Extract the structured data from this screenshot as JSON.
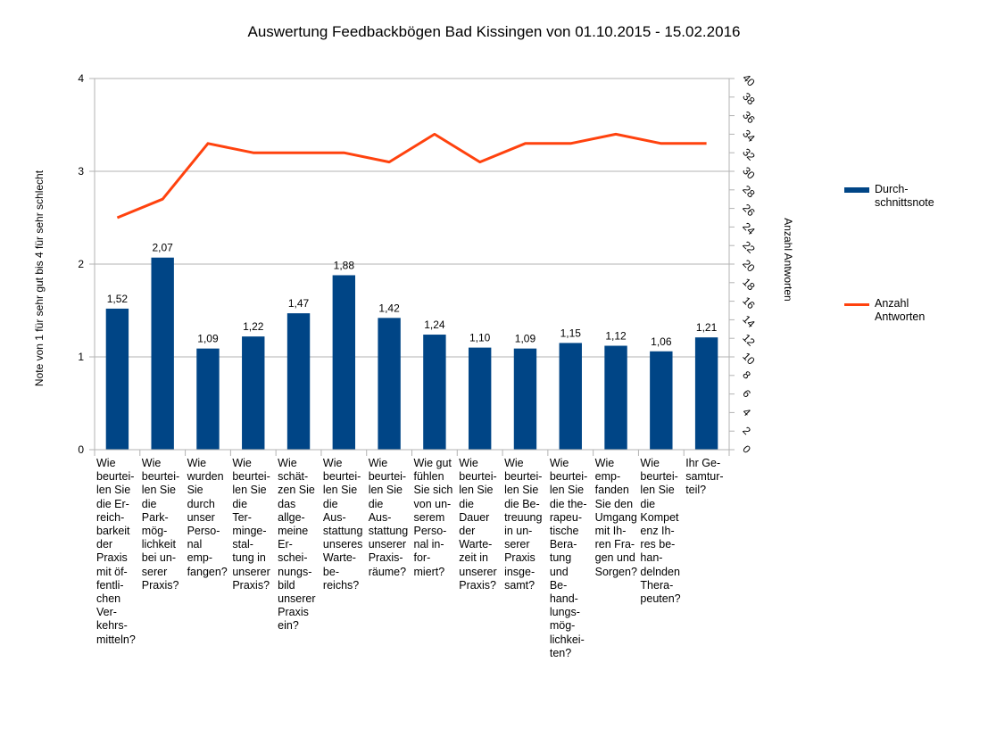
{
  "chart_data": {
    "type": "bar",
    "title": "Auswertung Feedbackbögen Bad Kissingen von 01.10.2015 - 15.02.2016",
    "ylabel": "Note von 1 für sehr gut bis 4 für sehr schlecht",
    "y2label": "Anzahl Antworten",
    "ylim": [
      0,
      4
    ],
    "y2lim": [
      0,
      40
    ],
    "yticks": [
      "0",
      "1",
      "2",
      "3",
      "4"
    ],
    "y2ticks": [
      "0",
      "2",
      "4",
      "6",
      "8",
      "10",
      "12",
      "14",
      "16",
      "18",
      "20",
      "22",
      "24",
      "26",
      "28",
      "30",
      "32",
      "34",
      "36",
      "38",
      "40"
    ],
    "grid": true,
    "legend_position": "right",
    "categories": [
      "Wie beurtei-\nlen Sie\ndie Er-\nreich-\nbarkeit\nder\nPraxis\nmit öf-\nfentli-\nchen\nVer-\nkehrs-\nmitteln?",
      "Wie\nbeurtei-\nlen Sie\ndie\nPark-\nmög-\nlichkeit\nbei un-\nserer\nPraxis?",
      "Wie\nwurden\nSie\ndurch\nunser\nPerso-\nnal\nemp-\nfangen?",
      "Wie\nbeurtei-\nlen Sie\ndie\nTer-\nminge-\nstal-\ntung in\nunserer\nPraxis?",
      "Wie\nschät-\nzen Sie\ndas\nallge-\nmeine\nEr-\nschei-\nnungs-\nbild\nunserer\nPraxis\nein?",
      "Wie\nbeurtei-\nlen Sie\ndie\nAus-\nstattung\nunseres\nWarte-\nbe-\nreichs?",
      "Wie\nbeurtei-\nlen Sie\ndie\nAus-\nstattung\nunserer\nPraxis-\nräume?",
      "Wie gut\nfühlen\nSie sich\nvon un-\nserem\nPerso-\nnal in-\nfor-\nmiert?",
      "Wie\nbeurtei-\nlen Sie\ndie\nDauer\nder\nWarte-\nzeit in\nunserer\nPraxis?",
      "Wie\nbeurtei-\nlen Sie\ndie Be-\ntreuung\nin un-\nserer\nPraxis\ninsge-\nsamt?",
      "Wie\nbeurtei-\nlen Sie\ndie the-\nrapeu-\ntische\nBera-\ntung\nund\nBe-\nhand-\nlungs-\nmög-\nlichkei-\nten?",
      "Wie\nemp-\nfanden\nSie den\nUmgang\nmit Ih-\nren Fra-\ngen und\nSorgen?",
      "Wie\nbeurtei-\nlen Sie\ndie\nKompet\nenz Ih-\nres be-\nhan-\ndelnden\nThera-\npeuten?",
      "Ihr Ge-\nsamtur-\nteil?"
    ],
    "series": [
      {
        "name": "Durch-\nschnittsnote",
        "type": "bar",
        "axis": "left",
        "color": "#004586",
        "values": [
          1.52,
          2.07,
          1.09,
          1.22,
          1.47,
          1.88,
          1.42,
          1.24,
          1.1,
          1.09,
          1.15,
          1.12,
          1.06,
          1.21
        ],
        "labels": [
          "1,52",
          "2,07",
          "1,09",
          "1,22",
          "1,47",
          "1,88",
          "1,42",
          "1,24",
          "1,10",
          "1,09",
          "1,15",
          "1,12",
          "1,06",
          "1,21"
        ]
      },
      {
        "name": "Anzahl\nAntworten",
        "type": "line",
        "axis": "right",
        "color": "#ff420e",
        "values": [
          25,
          27,
          33,
          32,
          32,
          32,
          31,
          34,
          31,
          33,
          33,
          34,
          33,
          33
        ]
      }
    ]
  }
}
